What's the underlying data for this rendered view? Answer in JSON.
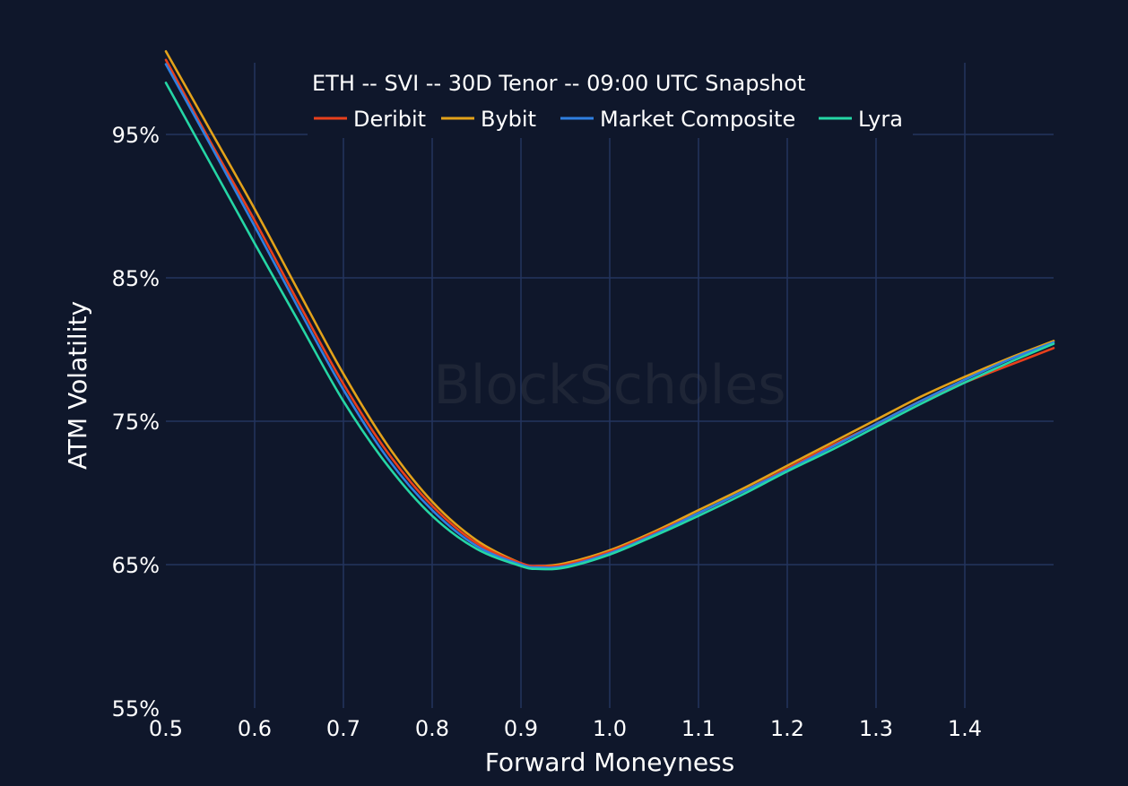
{
  "chart_data": {
    "type": "line",
    "title": "ETH -- SVI -- 30D Tenor -- 09:00 UTC Snapshot",
    "xlabel": "Forward Moneyness",
    "ylabel": "ATM Volatility",
    "xlim": [
      0.5,
      1.5
    ],
    "ylim": [
      55,
      100
    ],
    "x_ticks": [
      "0.5",
      "0.6",
      "0.7",
      "0.8",
      "0.9",
      "1.0",
      "1.1",
      "1.2",
      "1.3",
      "1.4"
    ],
    "y_ticks": [
      "55%",
      "65%",
      "75%",
      "85%",
      "95%"
    ],
    "y_tick_values": [
      55,
      65,
      75,
      85,
      95
    ],
    "x_tick_values": [
      0.5,
      0.6,
      0.7,
      0.8,
      0.9,
      1.0,
      1.1,
      1.2,
      1.3,
      1.4
    ],
    "grid": true,
    "legend_position": "top",
    "watermark": "BlockScholes",
    "x": [
      0.5,
      0.55,
      0.6,
      0.65,
      0.7,
      0.75,
      0.8,
      0.85,
      0.9,
      0.92,
      0.95,
      1.0,
      1.05,
      1.1,
      1.15,
      1.2,
      1.25,
      1.3,
      1.35,
      1.4,
      1.45,
      1.5
    ],
    "series": [
      {
        "name": "Deribit",
        "color": "#e8401c",
        "values": [
          100.2,
          94.5,
          89.0,
          83.2,
          77.6,
          72.8,
          69.1,
          66.5,
          65.1,
          64.9,
          65.0,
          65.9,
          67.2,
          68.6,
          70.1,
          71.7,
          73.3,
          74.8,
          76.4,
          77.7,
          78.9,
          80.1
        ]
      },
      {
        "name": "Bybit",
        "color": "#e3a21a",
        "values": [
          100.8,
          95.3,
          89.8,
          84.0,
          78.3,
          73.3,
          69.4,
          66.7,
          65.1,
          64.9,
          65.1,
          66.0,
          67.3,
          68.8,
          70.3,
          71.9,
          73.5,
          75.1,
          76.7,
          78.1,
          79.4,
          80.6
        ]
      },
      {
        "name": "Market Composite",
        "color": "#2f7fe0",
        "values": [
          99.9,
          94.3,
          88.6,
          82.8,
          77.2,
          72.4,
          68.8,
          66.3,
          65.0,
          64.8,
          64.9,
          65.8,
          67.1,
          68.6,
          70.1,
          71.6,
          73.2,
          74.8,
          76.4,
          77.9,
          79.3,
          80.5
        ]
      },
      {
        "name": "Lyra",
        "color": "#25d6a5",
        "values": [
          98.6,
          93.0,
          87.4,
          81.9,
          76.4,
          71.9,
          68.4,
          66.1,
          64.9,
          64.7,
          64.8,
          65.7,
          67.0,
          68.4,
          69.9,
          71.5,
          73.0,
          74.6,
          76.2,
          77.7,
          79.1,
          80.4
        ]
      }
    ]
  }
}
